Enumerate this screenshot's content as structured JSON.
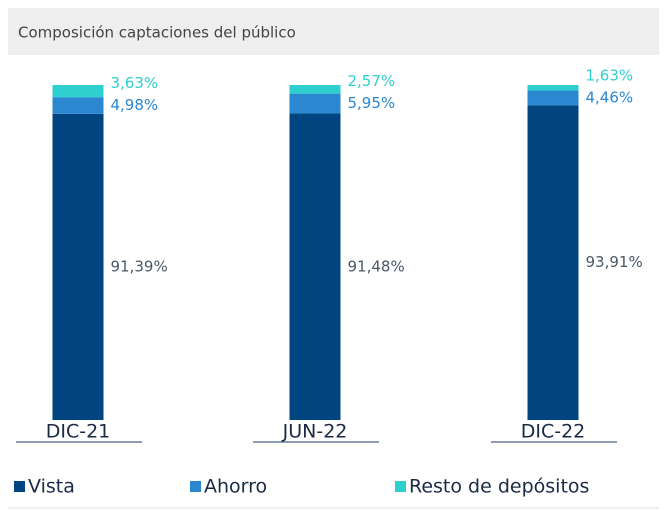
{
  "chart_data": {
    "type": "bar",
    "stacked": true,
    "title": "Composición captaciones del público",
    "categories": [
      "DIC-21",
      "JUN-22",
      "DIC-22"
    ],
    "ylim": [
      0,
      100
    ],
    "series": [
      {
        "name": "Vista",
        "color": "#00457f",
        "values": [
          91.39,
          91.48,
          93.91
        ],
        "value_labels": [
          "91,39%",
          "91,48%",
          "93,91%"
        ]
      },
      {
        "name": "Ahorro",
        "color": "#2a87d0",
        "values": [
          4.98,
          5.95,
          4.46
        ],
        "value_labels": [
          "4,98%",
          "5,95%",
          "4,46%"
        ]
      },
      {
        "name": "Resto de depósitos",
        "color": "#2ecfcf",
        "values": [
          3.63,
          2.57,
          1.63
        ],
        "value_labels": [
          "3,63%",
          "2,57%",
          "1,63%"
        ]
      }
    ]
  }
}
